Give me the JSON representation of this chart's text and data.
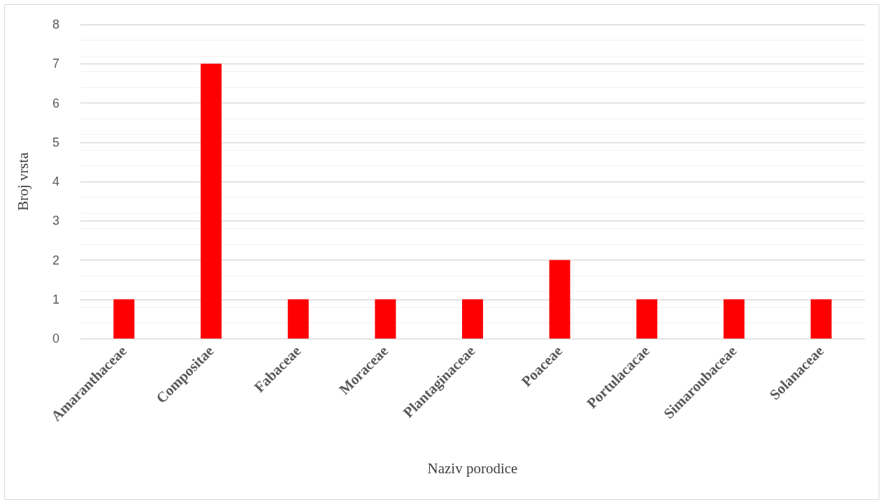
{
  "chart_data": {
    "type": "bar",
    "xlabel": "Naziv porodice",
    "ylabel": "Broj vrsta",
    "categories": [
      "Amaranthaceae",
      "Compositae",
      "Fabaceae",
      "Moraceae",
      "Plantaginaceae",
      "Poaceae",
      "Portulacacae",
      "Simaroubaceae",
      "Solanaceae"
    ],
    "values": [
      1,
      7,
      1,
      1,
      1,
      2,
      1,
      1,
      1
    ],
    "color": "#ff0000",
    "ylim": [
      0,
      8
    ],
    "yticks": [
      0,
      1,
      2,
      3,
      4,
      5,
      6,
      7,
      8
    ],
    "grid": "y"
  }
}
